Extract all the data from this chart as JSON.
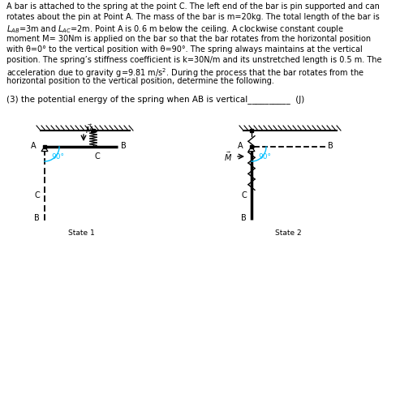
{
  "bg_color": "#ffffff",
  "angle_color": "#00bfff",
  "state1_label": "State 1",
  "state2_label": "State 2",
  "text_lines": [
    "A bar is attached to the spring at the point C. The left end of the bar is pin supported and can",
    "rotates about the pin at Point A. The mass of the bar is m=20kg. The total length of the bar is",
    "$L_{AB}$=3m and $L_{AC}$=2m. Point A is 0.6 m below the ceiling. A clockwise constant couple",
    "moment M= 30Nm is applied on the bar so that the bar rotates from the horizontal position",
    "with θ=0° to the vertical position with θ=90°. The spring always maintains at the vertical",
    "position. The spring’s stiffness coefficient is k=30N/m and its unstretched length is 0.5 m. The",
    "acceleration due to gravity g=9.81 m/s$^2$. During the process that the bar rotates from the",
    "horizontal position to the vertical position, determine the following."
  ],
  "question": "(3) the potential energy of the spring when AB is vertical__________  (J)",
  "fig_width": 5.09,
  "fig_height": 4.86,
  "dpi": 100
}
